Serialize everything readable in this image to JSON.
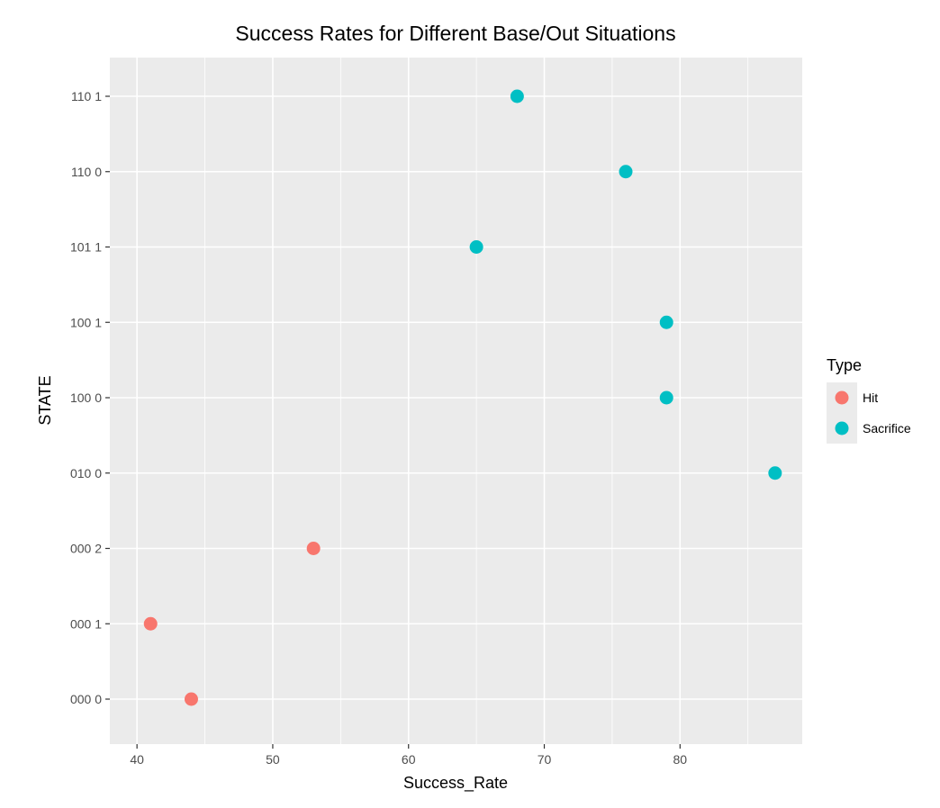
{
  "chart_data": {
    "type": "scatter",
    "title": "Success Rates for Different Base/Out Situations",
    "xlabel": "Success_Rate",
    "ylabel": "STATE",
    "xlim": [
      38,
      89
    ],
    "xticks": [
      40,
      50,
      60,
      70,
      80
    ],
    "categories": [
      "000 0",
      "000 1",
      "000 2",
      "010 0",
      "100 0",
      "100 1",
      "101 1",
      "110 0",
      "110 1"
    ],
    "grid": true,
    "legend": {
      "title": "Type",
      "position": "right",
      "entries": [
        {
          "label": "Hit",
          "color": "#F8766D"
        },
        {
          "label": "Sacrifice",
          "color": "#00BFC4"
        }
      ]
    },
    "series": [
      {
        "name": "Hit",
        "color": "#F8766D",
        "points": [
          {
            "state": "000 0",
            "x": 44
          },
          {
            "state": "000 1",
            "x": 41
          },
          {
            "state": "000 2",
            "x": 53
          }
        ]
      },
      {
        "name": "Sacrifice",
        "color": "#00BFC4",
        "points": [
          {
            "state": "010 0",
            "x": 87
          },
          {
            "state": "100 0",
            "x": 79
          },
          {
            "state": "100 1",
            "x": 79
          },
          {
            "state": "101 1",
            "x": 65
          },
          {
            "state": "110 0",
            "x": 76
          },
          {
            "state": "110 1",
            "x": 68
          }
        ]
      }
    ]
  }
}
